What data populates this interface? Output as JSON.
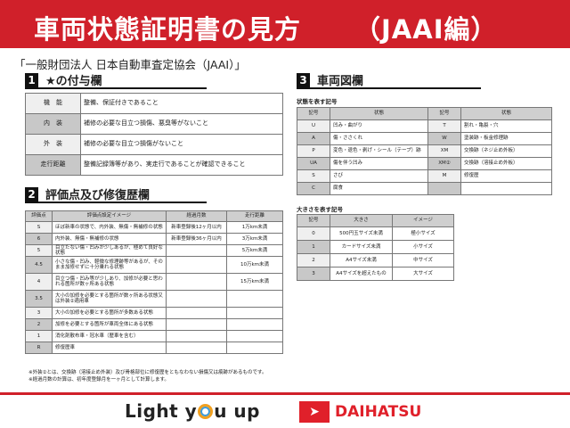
{
  "header": {
    "title": "車両状態証明書の見方",
    "suffix": "（JAAI編）"
  },
  "subtitle": "「一般財団法人 日本自動車査定協会（JAAI）」",
  "section1": {
    "num": "1",
    "title": "★の付与欄",
    "rows": [
      [
        "機　能",
        "整備、保証付きであること"
      ],
      [
        "内　装",
        "補修の必要な目立つ損傷、悪臭等がないこと"
      ],
      [
        "外　装",
        "補修の必要な目立つ損傷がないこと"
      ],
      [
        "走行距離",
        "整備記録簿等があり、実走行であることが確認できること"
      ]
    ]
  },
  "section2": {
    "num": "2",
    "title": "評価点及び修復歴欄",
    "headers": [
      "評価点",
      "評価点設定イメージ",
      "経過月数",
      "走行距離"
    ],
    "rows": [
      [
        "S",
        "ほぼ新車の状態で、内外装、無傷・無補修の状態",
        "新車登録後12ヶ月以内",
        "1万km未満"
      ],
      [
        "6",
        "内外装、無傷・無補修の状態",
        "新車登録後36ヶ月以内",
        "3万km未満"
      ],
      [
        "5",
        "目立たない傷・凹みが少しあるが、極めて良好な状態",
        "",
        "5万km未満"
      ],
      [
        "4.5",
        "小さな傷・凹み、軽微な修理跡等があるが、そのまま加修せずに十分乗れる状態",
        "",
        "10万km未満"
      ],
      [
        "4",
        "目立つ傷・凹み等が少しあり、加修が必要と思われる箇所が数ヶ所ある状態",
        "",
        "15万km未満"
      ],
      [
        "3.5",
        "大小の加修を必要とする箇所が数ヶ所ある状態又は外装②適用車",
        "",
        ""
      ],
      [
        "3",
        "大小の加修を必要とする箇所が多数ある状態",
        "",
        ""
      ],
      [
        "2",
        "加修を必要とする箇所が車両全体にある状態",
        "",
        ""
      ],
      [
        "1",
        "消化剤散布車・冠水車（歴車を含む）",
        "",
        ""
      ],
      [
        "R",
        "修復歴車",
        "",
        ""
      ]
    ]
  },
  "section3": {
    "num": "3",
    "title": "車両図欄",
    "state_label": "状態を表す記号",
    "state_headers": [
      "記号",
      "状態",
      "記号",
      "状態"
    ],
    "state_rows": [
      [
        "U",
        "凹み・曲がり",
        "T",
        "割れ・亀裂・穴"
      ],
      [
        "A",
        "傷・ささくれ",
        "W",
        "塗装跡・板金修理跡"
      ],
      [
        "P",
        "変色・退色・剥げ・シール（テープ）跡",
        "XM",
        "交換跡（ネジ止め外板）"
      ],
      [
        "UA",
        "傷を伴う凹み",
        "XM②",
        "交換跡（溶接止め外板）"
      ],
      [
        "S",
        "さび",
        "M",
        "修復歴"
      ],
      [
        "C",
        "腐食",
        "",
        ""
      ]
    ],
    "size_label": "大きさを表す記号",
    "size_headers": [
      "記号",
      "大きさ",
      "イメージ"
    ],
    "size_rows": [
      [
        "0",
        "500円玉サイズ未満",
        "極小サイズ"
      ],
      [
        "1",
        "カードサイズ未満",
        "小サイズ"
      ],
      [
        "2",
        "A4サイズ未満",
        "中サイズ"
      ],
      [
        "3",
        "A4サイズを超えたもの",
        "大サイズ"
      ]
    ]
  },
  "notes": [
    "※外装②とは、交換跡（溶接止め外装）及び骨格部位に修復歴をともなわない損傷又は痕跡があるものです。",
    "※経過月数の計算は、初年度登録月を一ヶ月として計算します。"
  ],
  "footer": {
    "slogan_a": "Light y",
    "slogan_b": "u up",
    "brand": "DAIHATSU"
  },
  "colors": {
    "brand_red": "#d0202a"
  }
}
